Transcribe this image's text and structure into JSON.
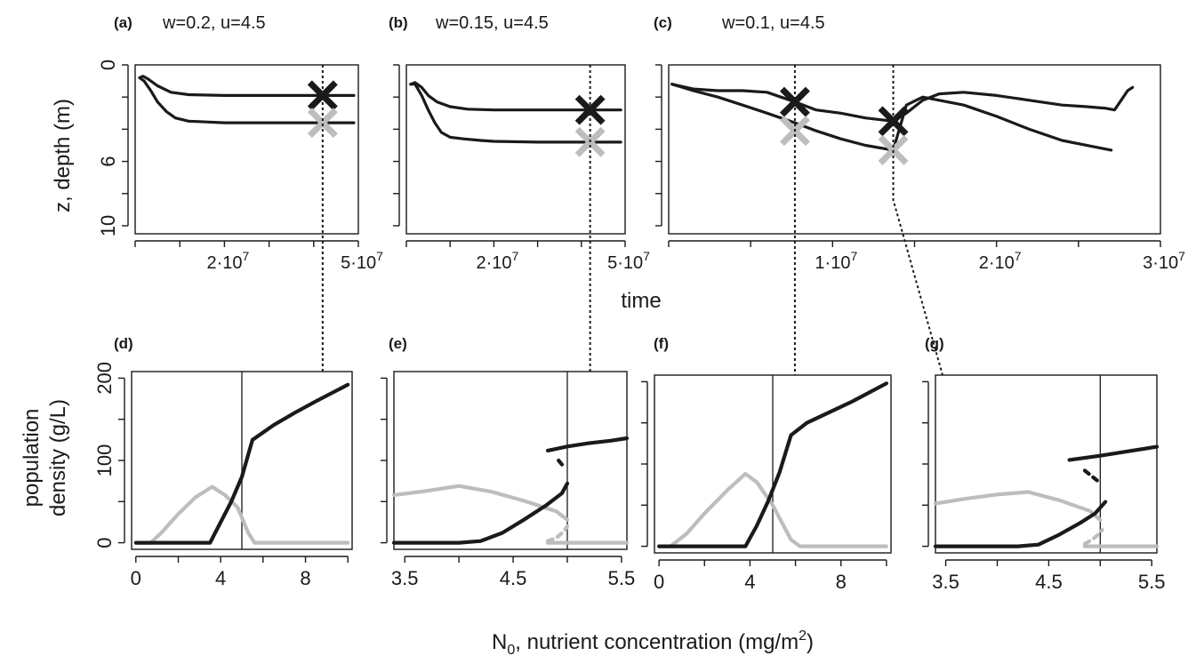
{
  "figure": {
    "shared_x_title_top": "time",
    "shared_y_title_top": "z, depth (m)",
    "shared_y_title_bottom": [
      "population",
      "density (g/L)"
    ],
    "shared_x_title_bottom": {
      "prefix": "N",
      "sub": "0",
      "text": ", nutrient concentration (mg/m",
      "sup": "2",
      "suffix": ")"
    },
    "colors": {
      "species_dark": "#1a1a1a",
      "species_light": "#bdbdbd",
      "axis": "#1a1a1a"
    }
  },
  "chart_data": [
    {
      "id": "a",
      "type": "line",
      "label": "(a)",
      "params": "w=0.2, u=4.5",
      "xlim": [
        0,
        50000000
      ],
      "ylim": [
        0,
        10.5
      ],
      "y_reversed": true,
      "y_ticks": [
        0,
        2,
        4,
        6,
        8,
        10
      ],
      "y_tick_labels": [
        "0",
        "",
        "",
        "6",
        "",
        "10"
      ],
      "x_ticks": [
        0,
        10000000,
        20000000,
        30000000,
        40000000,
        50000000
      ],
      "x_tick_labels": [
        {
          "base": "",
          "exp": ""
        },
        {
          "base": "",
          "exp": ""
        },
        {
          "base": "2·10",
          "exp": "7"
        },
        {
          "base": "",
          "exp": ""
        },
        {
          "base": "",
          "exp": ""
        },
        {
          "base": "5·10",
          "exp": "7"
        }
      ],
      "series": [
        {
          "color": "dark",
          "x": [
            1000000,
            1800000,
            3000000,
            5000000,
            8000000,
            12000000,
            20000000,
            30000000,
            40000000,
            49000000
          ],
          "y": [
            0.8,
            0.7,
            0.9,
            1.3,
            1.7,
            1.85,
            1.9,
            1.9,
            1.9,
            1.9
          ]
        },
        {
          "color": "dark",
          "x": [
            1000000,
            2000000,
            3500000,
            5000000,
            7000000,
            9000000,
            12000000,
            16000000,
            20000000,
            30000000,
            40000000,
            49000000
          ],
          "y": [
            0.8,
            1.0,
            1.6,
            2.3,
            2.9,
            3.3,
            3.5,
            3.55,
            3.6,
            3.6,
            3.6,
            3.6
          ]
        }
      ],
      "markers": [
        {
          "x": 42000000,
          "y": 1.9,
          "color": "dark",
          "symbol": "X"
        },
        {
          "x": 42000000,
          "y": 3.6,
          "color": "light",
          "symbol": "X"
        }
      ],
      "vline_x": 42000000
    },
    {
      "id": "b",
      "type": "line",
      "label": "(b)",
      "params": "w=0.15, u=4.5",
      "xlim": [
        0,
        50000000
      ],
      "ylim": [
        0,
        10.5
      ],
      "y_reversed": true,
      "y_ticks": [
        0,
        2,
        4,
        6,
        8,
        10
      ],
      "x_ticks": [
        0,
        10000000,
        20000000,
        30000000,
        40000000,
        50000000
      ],
      "x_tick_labels": [
        {
          "base": "",
          "exp": ""
        },
        {
          "base": "",
          "exp": ""
        },
        {
          "base": "2·10",
          "exp": "7"
        },
        {
          "base": "",
          "exp": ""
        },
        {
          "base": "",
          "exp": ""
        },
        {
          "base": "5·10",
          "exp": "7"
        }
      ],
      "series": [
        {
          "color": "dark",
          "x": [
            1000000,
            2000000,
            3500000,
            5000000,
            7000000,
            10000000,
            14000000,
            20000000,
            30000000,
            40000000,
            49000000
          ],
          "y": [
            1.2,
            1.1,
            1.4,
            1.9,
            2.3,
            2.6,
            2.75,
            2.8,
            2.8,
            2.8,
            2.8
          ]
        },
        {
          "color": "dark",
          "x": [
            1000000,
            2000000,
            3500000,
            5000000,
            6500000,
            8000000,
            10000000,
            13000000,
            17000000,
            20000000,
            30000000,
            40000000,
            49000000
          ],
          "y": [
            1.2,
            1.2,
            1.9,
            2.8,
            3.6,
            4.2,
            4.5,
            4.6,
            4.7,
            4.75,
            4.8,
            4.8,
            4.8
          ]
        }
      ],
      "markers": [
        {
          "x": 42000000,
          "y": 2.8,
          "color": "dark",
          "symbol": "X"
        },
        {
          "x": 42000000,
          "y": 4.8,
          "color": "light",
          "symbol": "X"
        }
      ],
      "vline_x": 42000000
    },
    {
      "id": "c",
      "type": "line",
      "label": "(c)",
      "params": "w=0.1, u=4.5",
      "xlim": [
        0,
        30000000
      ],
      "ylim": [
        0,
        10.5
      ],
      "y_reversed": true,
      "y_ticks": [
        0,
        2,
        4,
        6,
        8,
        10
      ],
      "x_ticks": [
        0,
        5000000,
        10000000,
        15000000,
        20000000,
        25000000,
        30000000
      ],
      "x_tick_labels": [
        {
          "base": "",
          "exp": ""
        },
        {
          "base": "",
          "exp": ""
        },
        {
          "base": "1·10",
          "exp": "7"
        },
        {
          "base": "",
          "exp": ""
        },
        {
          "base": "2·10",
          "exp": "7"
        },
        {
          "base": "",
          "exp": ""
        },
        {
          "base": "3·10",
          "exp": "7"
        }
      ],
      "series": [
        {
          "color": "dark",
          "x": [
            200000,
            1500000,
            3000000,
            4500000,
            6000000,
            7700000,
            9000000,
            10500000,
            12000000,
            13700000,
            14500000,
            15500000,
            16500000,
            18000000,
            20000000,
            22000000,
            24000000,
            25500000,
            26700000,
            27200000,
            27600000,
            28000000,
            28300000
          ],
          "y": [
            1.2,
            1.5,
            1.6,
            1.6,
            1.7,
            2.3,
            2.8,
            3.0,
            3.3,
            3.5,
            3.0,
            2.2,
            1.8,
            1.7,
            1.9,
            2.2,
            2.5,
            2.6,
            2.7,
            2.8,
            2.2,
            1.6,
            1.4
          ]
        },
        {
          "color": "dark",
          "x": [
            200000,
            1500000,
            3000000,
            4500000,
            6000000,
            7700000,
            9000000,
            10500000,
            12000000,
            13700000,
            14500000,
            15500000,
            16500000,
            18000000,
            20000000,
            22000000,
            24000000,
            26000000,
            27000000
          ],
          "y": [
            1.2,
            1.6,
            2.0,
            2.5,
            3.0,
            3.6,
            4.1,
            4.6,
            5.0,
            5.3,
            2.5,
            2.0,
            2.2,
            2.5,
            3.2,
            4.0,
            4.7,
            5.1,
            5.3
          ]
        }
      ],
      "markers": [
        {
          "x": 7700000,
          "y": 2.3,
          "color": "dark",
          "symbol": "X"
        },
        {
          "x": 7700000,
          "y": 4.1,
          "color": "light",
          "symbol": "X"
        },
        {
          "x": 13700000,
          "y": 3.5,
          "color": "dark",
          "symbol": "X"
        },
        {
          "x": 13700000,
          "y": 5.3,
          "color": "light",
          "symbol": "X"
        }
      ],
      "vlines_x": [
        7700000,
        13700000
      ]
    },
    {
      "id": "d",
      "type": "line",
      "label": "(d)",
      "xlim": [
        -0.2,
        10.2
      ],
      "ylim": [
        -8,
        208
      ],
      "x_ticks": [
        0,
        2,
        4,
        6,
        8,
        10
      ],
      "x_tick_labels": [
        "0",
        "",
        "4",
        "",
        "8",
        ""
      ],
      "y_ticks": [
        0,
        50,
        100,
        150,
        200
      ],
      "y_tick_labels": [
        "0",
        "",
        "100",
        "",
        "200"
      ],
      "vline": 5,
      "series": [
        {
          "color": "light",
          "style": "solid",
          "x": [
            0,
            0.7,
            1.2,
            2.0,
            2.8,
            3.6,
            4.2,
            4.8,
            5.3,
            5.6,
            6.5,
            8,
            10
          ],
          "y": [
            0,
            0,
            12,
            35,
            55,
            68,
            58,
            43,
            12,
            0,
            0,
            0,
            0
          ]
        },
        {
          "color": "dark",
          "style": "solid",
          "x": [
            0,
            1,
            2,
            3,
            3.5,
            4.0,
            4.5,
            5.0,
            5.5,
            6.5,
            7.5,
            8.5,
            10
          ],
          "y": [
            0,
            0,
            0,
            0,
            0,
            25,
            50,
            80,
            125,
            143,
            158,
            172,
            192
          ]
        }
      ]
    },
    {
      "id": "e",
      "type": "line",
      "label": "(e)",
      "xlim": [
        3.4,
        5.55
      ],
      "ylim": [
        -8,
        208
      ],
      "x_ticks": [
        3.5,
        4.0,
        4.5,
        5.0,
        5.5
      ],
      "x_tick_labels": [
        "3.5",
        "",
        "4.5",
        "",
        "5.5"
      ],
      "y_ticks": [
        0,
        50,
        100,
        150,
        200
      ],
      "vline": 5,
      "series": [
        {
          "color": "light",
          "style": "solid",
          "x": [
            3.4,
            3.7,
            4.0,
            4.3,
            4.6,
            4.9,
            5.0
          ],
          "y": [
            58,
            63,
            69,
            62,
            51,
            38,
            28
          ]
        },
        {
          "color": "light",
          "style": "solid",
          "x": [
            4.82,
            5.0,
            5.25,
            5.55
          ],
          "y": [
            0,
            0,
            0,
            0
          ]
        },
        {
          "color": "light",
          "style": "dashed",
          "x": [
            4.82,
            4.9,
            4.97,
            5.0
          ],
          "y": [
            2,
            6,
            14,
            20
          ]
        },
        {
          "color": "dark",
          "style": "solid",
          "x": [
            3.4,
            3.7,
            4.0,
            4.2,
            4.4,
            4.6,
            4.8,
            4.95,
            5.0
          ],
          "y": [
            0,
            0,
            0,
            2,
            12,
            28,
            45,
            60,
            72
          ]
        },
        {
          "color": "dark",
          "style": "solid",
          "x": [
            4.82,
            5.0,
            5.2,
            5.4,
            5.55
          ],
          "y": [
            112,
            117,
            121,
            124,
            127
          ]
        },
        {
          "color": "dark",
          "style": "dashed",
          "x": [
            4.92,
            4.95,
            4.97
          ],
          "y": [
            100,
            95,
            92
          ]
        }
      ]
    },
    {
      "id": "f",
      "type": "line",
      "label": "(f)",
      "xlim": [
        -0.2,
        10.2
      ],
      "ylim": [
        -8,
        208
      ],
      "x_ticks": [
        0,
        2,
        4,
        6,
        8,
        10
      ],
      "x_tick_labels": [
        "0",
        "",
        "4",
        "",
        "8",
        ""
      ],
      "y_ticks": [
        0,
        50,
        100,
        150,
        200
      ],
      "vline": 5,
      "series": [
        {
          "color": "light",
          "style": "solid",
          "x": [
            0,
            0.5,
            1.2,
            2.0,
            3.0,
            3.8,
            4.3,
            5.0,
            5.8,
            6.2,
            8,
            10
          ],
          "y": [
            0,
            0,
            15,
            40,
            68,
            88,
            78,
            50,
            8,
            0,
            0,
            0
          ]
        },
        {
          "color": "dark",
          "style": "solid",
          "x": [
            0,
            1,
            2,
            3,
            3.8,
            4.3,
            4.8,
            5.3,
            5.8,
            6.5,
            7.5,
            8.5,
            10
          ],
          "y": [
            0,
            0,
            0,
            0,
            0,
            25,
            55,
            90,
            135,
            150,
            163,
            176,
            198
          ]
        }
      ]
    },
    {
      "id": "g",
      "type": "line",
      "label": "(g)",
      "xlim": [
        3.4,
        5.55
      ],
      "ylim": [
        -8,
        208
      ],
      "x_ticks": [
        3.5,
        4.0,
        4.5,
        5.0,
        5.5
      ],
      "x_tick_labels": [
        "3.5",
        "",
        "4.5",
        "",
        "5.5"
      ],
      "y_ticks": [
        0,
        50,
        100,
        150,
        200
      ],
      "vline": 5,
      "series": [
        {
          "color": "light",
          "style": "solid",
          "x": [
            3.4,
            3.7,
            4.0,
            4.3,
            4.6,
            4.9,
            5.0
          ],
          "y": [
            52,
            58,
            63,
            66,
            56,
            43,
            32
          ]
        },
        {
          "color": "light",
          "style": "solid",
          "x": [
            4.85,
            5.0,
            5.25,
            5.55
          ],
          "y": [
            0,
            0,
            0,
            0
          ]
        },
        {
          "color": "light",
          "style": "dashed",
          "x": [
            4.85,
            4.92,
            4.98,
            5.02
          ],
          "y": [
            3,
            8,
            14,
            20
          ]
        },
        {
          "color": "dark",
          "style": "solid",
          "x": [
            3.4,
            3.8,
            4.2,
            4.4,
            4.6,
            4.8,
            4.95,
            5.05
          ],
          "y": [
            0,
            0,
            0,
            2,
            14,
            28,
            40,
            54
          ]
        },
        {
          "color": "dark",
          "style": "solid",
          "x": [
            4.7,
            5.0,
            5.25,
            5.55
          ],
          "y": [
            105,
            110,
            115,
            121
          ]
        },
        {
          "color": "dark",
          "style": "dashed",
          "x": [
            4.85,
            4.92,
            4.97
          ],
          "y": [
            92,
            85,
            80
          ]
        }
      ]
    }
  ]
}
